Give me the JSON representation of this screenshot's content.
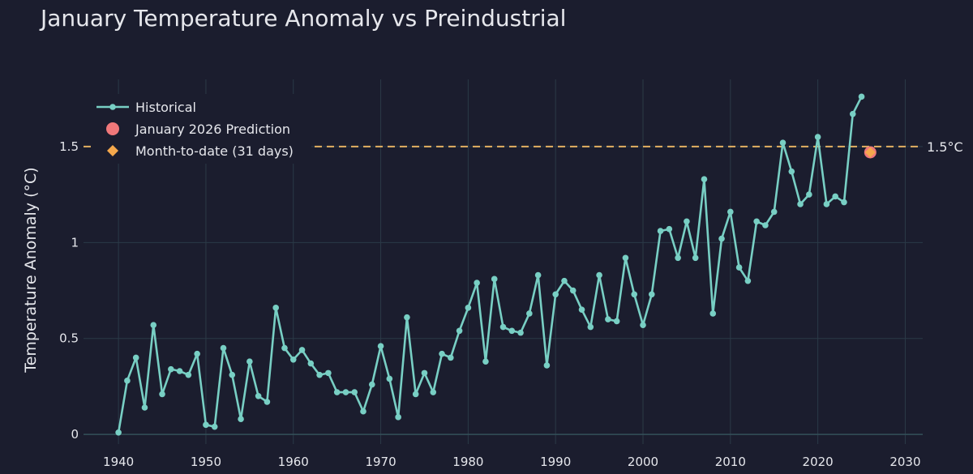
{
  "chart_data": {
    "type": "line",
    "title": "January Temperature Anomaly vs Preindustrial",
    "xlabel": "",
    "ylabel": "Temperature Anomaly (°C)",
    "xlim": [
      1936,
      2032
    ],
    "ylim": [
      -0.05,
      1.85
    ],
    "x_ticks": [
      1940,
      1950,
      1960,
      1970,
      1980,
      1990,
      2000,
      2010,
      2020,
      2030
    ],
    "y_ticks": [
      {
        "value": 0,
        "label": "0"
      },
      {
        "value": 0.5,
        "label": "0.5"
      },
      {
        "value": 1,
        "label": "1"
      },
      {
        "value": 1.5,
        "label": "1.5"
      }
    ],
    "grid": true,
    "legend_position": "top-left",
    "colors": {
      "background": "#1b1d2e",
      "grid": "#2b3a47",
      "historical": "#78cfc4",
      "prediction": "#f0787a",
      "month_to_date": "#f5a84c",
      "reference": "#e3b062",
      "text": "#e6e7ec"
    },
    "series": [
      {
        "name": "Historical",
        "kind": "line-markers",
        "x": [
          1940,
          1941,
          1942,
          1943,
          1944,
          1945,
          1946,
          1947,
          1948,
          1949,
          1950,
          1951,
          1952,
          1953,
          1954,
          1955,
          1956,
          1957,
          1958,
          1959,
          1960,
          1961,
          1962,
          1963,
          1964,
          1965,
          1966,
          1967,
          1968,
          1969,
          1970,
          1971,
          1972,
          1973,
          1974,
          1975,
          1976,
          1977,
          1978,
          1979,
          1980,
          1981,
          1982,
          1983,
          1984,
          1985,
          1986,
          1987,
          1988,
          1989,
          1990,
          1991,
          1992,
          1993,
          1994,
          1995,
          1996,
          1997,
          1998,
          1999,
          2000,
          2001,
          2002,
          2003,
          2004,
          2005,
          2006,
          2007,
          2008,
          2009,
          2010,
          2011,
          2012,
          2013,
          2014,
          2015,
          2016,
          2017,
          2018,
          2019,
          2020,
          2021,
          2022,
          2023,
          2024,
          2025
        ],
        "values": [
          0.01,
          0.28,
          0.4,
          0.14,
          0.57,
          0.21,
          0.34,
          0.33,
          0.31,
          0.42,
          0.05,
          0.04,
          0.45,
          0.31,
          0.08,
          0.38,
          0.2,
          0.17,
          0.66,
          0.45,
          0.39,
          0.44,
          0.37,
          0.31,
          0.32,
          0.22,
          0.22,
          0.22,
          0.12,
          0.26,
          0.46,
          0.29,
          0.09,
          0.61,
          0.21,
          0.32,
          0.22,
          0.42,
          0.4,
          0.54,
          0.66,
          0.79,
          0.38,
          0.81,
          0.56,
          0.54,
          0.53,
          0.63,
          0.83,
          0.36,
          0.73,
          0.8,
          0.75,
          0.65,
          0.56,
          0.83,
          0.6,
          0.59,
          0.92,
          0.73,
          0.57,
          0.73,
          1.06,
          1.07,
          0.92,
          1.11,
          0.92,
          1.33,
          0.63,
          1.02,
          1.16,
          0.87,
          0.8,
          1.11,
          1.09,
          1.16,
          1.52,
          1.37,
          1.2,
          1.25,
          1.55,
          1.2,
          1.24,
          1.21,
          1.67,
          1.76
        ]
      },
      {
        "name": "January 2026 Prediction",
        "kind": "marker-circle",
        "x": [
          2026
        ],
        "values": [
          1.47
        ]
      },
      {
        "name": "Month-to-date (31 days)",
        "kind": "marker-diamond",
        "x": [
          2026
        ],
        "values": [
          1.47
        ]
      }
    ],
    "reference_lines": [
      {
        "value": 1.5,
        "label": "1.5°C"
      }
    ]
  }
}
